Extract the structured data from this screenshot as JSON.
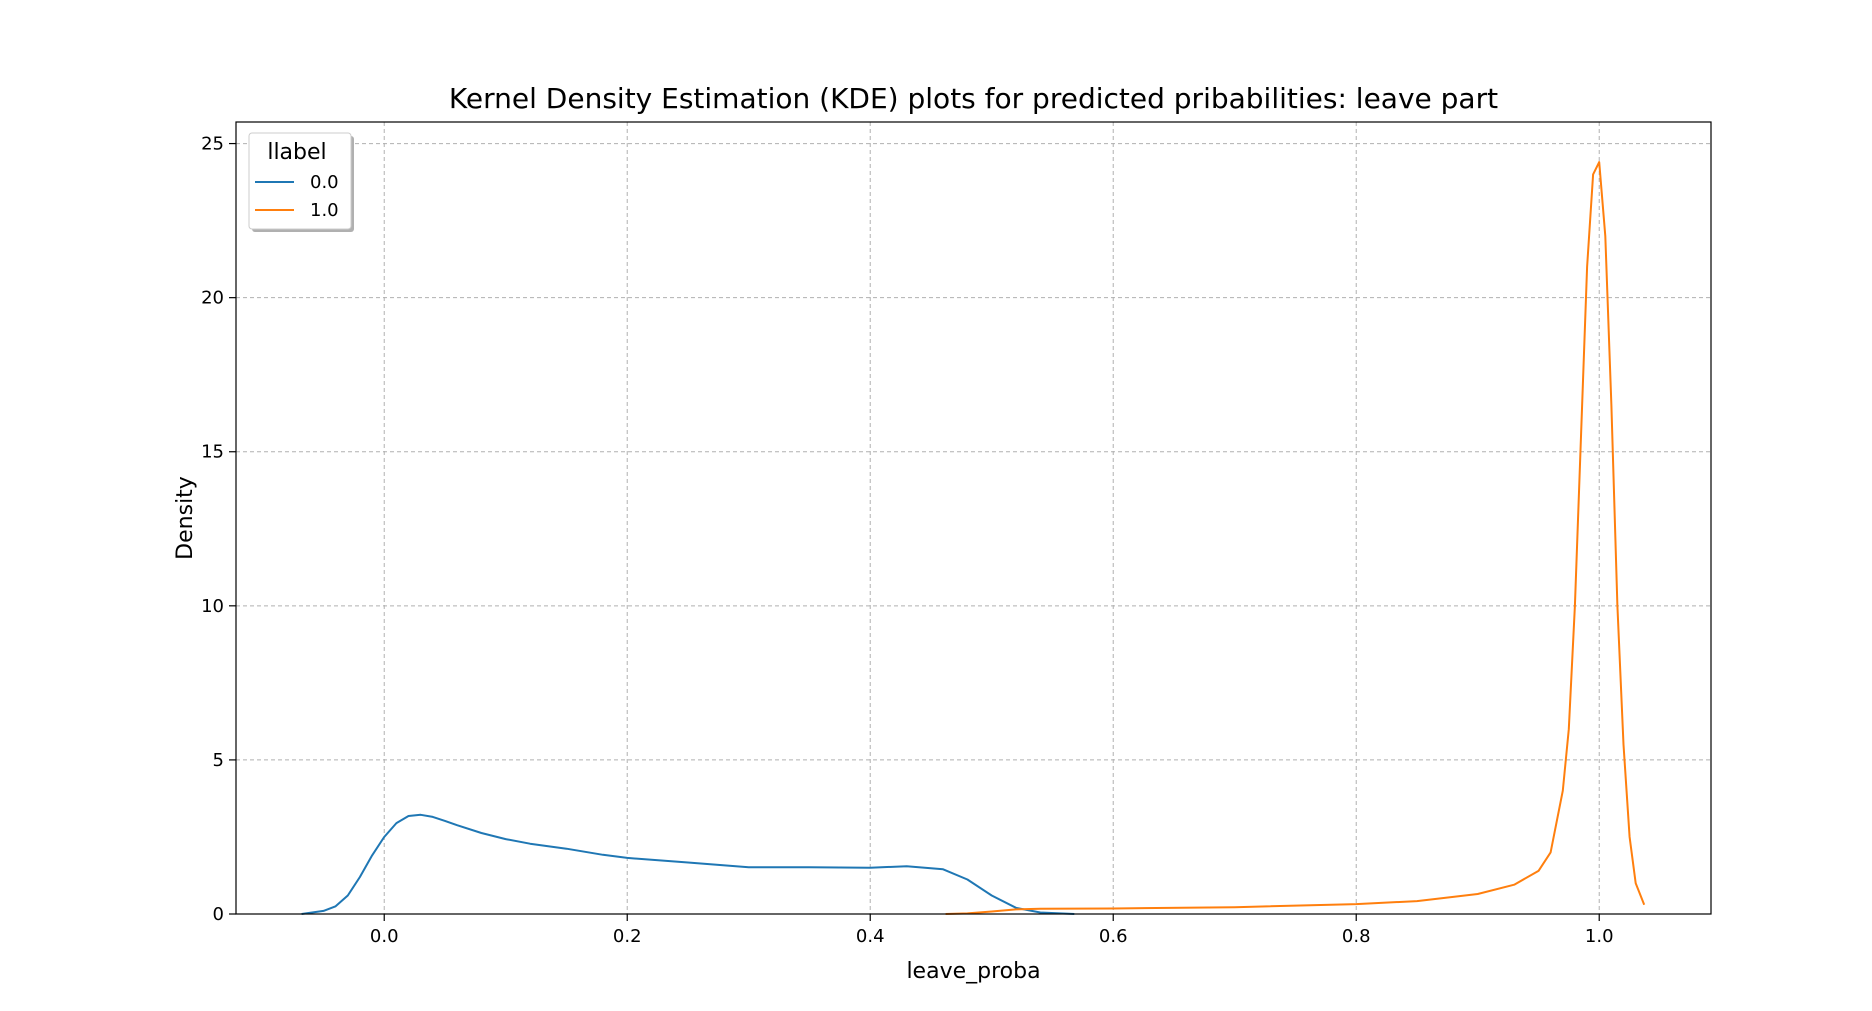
{
  "chart_data": {
    "type": "line",
    "title": "Kernel Density Estimation (KDE) plots for predicted pribabilities: leave part",
    "xlabel": "leave_proba",
    "ylabel": "Density",
    "xlim": [
      -0.122,
      1.092
    ],
    "ylim": [
      0,
      25.7
    ],
    "xticks": [
      0.0,
      0.2,
      0.4,
      0.6,
      0.8,
      1.0
    ],
    "xtick_labels": [
      "0.0",
      "0.2",
      "0.4",
      "0.6",
      "0.8",
      "1.0"
    ],
    "yticks": [
      0,
      5,
      10,
      15,
      20,
      25
    ],
    "ytick_labels": [
      "0",
      "5",
      "10",
      "15",
      "20",
      "25"
    ],
    "grid": true,
    "legend": {
      "title": "llabel",
      "position": "top-left"
    },
    "series": [
      {
        "name": "0.0",
        "color": "#1f77b4",
        "x": [
          -0.068,
          -0.05,
          -0.04,
          -0.03,
          -0.02,
          -0.01,
          0.0,
          0.01,
          0.02,
          0.03,
          0.04,
          0.05,
          0.06,
          0.08,
          0.1,
          0.12,
          0.15,
          0.18,
          0.2,
          0.25,
          0.3,
          0.35,
          0.4,
          0.43,
          0.46,
          0.48,
          0.5,
          0.52,
          0.54,
          0.568
        ],
        "y": [
          0.0,
          0.1,
          0.25,
          0.6,
          1.2,
          1.9,
          2.5,
          2.95,
          3.18,
          3.22,
          3.15,
          3.02,
          2.88,
          2.63,
          2.43,
          2.28,
          2.12,
          1.92,
          1.82,
          1.67,
          1.52,
          1.52,
          1.5,
          1.55,
          1.45,
          1.12,
          0.6,
          0.2,
          0.05,
          0.0
        ]
      },
      {
        "name": "1.0",
        "color": "#ff7f0e",
        "x": [
          0.462,
          0.48,
          0.5,
          0.52,
          0.54,
          0.6,
          0.7,
          0.8,
          0.85,
          0.9,
          0.93,
          0.95,
          0.96,
          0.97,
          0.975,
          0.98,
          0.985,
          0.99,
          0.995,
          1.0,
          1.005,
          1.01,
          1.015,
          1.02,
          1.025,
          1.03,
          1.037
        ],
        "y": [
          0.0,
          0.02,
          0.08,
          0.15,
          0.17,
          0.18,
          0.22,
          0.32,
          0.42,
          0.65,
          0.95,
          1.4,
          2.0,
          4.0,
          6.0,
          10.0,
          15.5,
          21.0,
          24.0,
          24.4,
          22.0,
          16.5,
          10.0,
          5.5,
          2.5,
          1.0,
          0.3
        ]
      }
    ]
  }
}
